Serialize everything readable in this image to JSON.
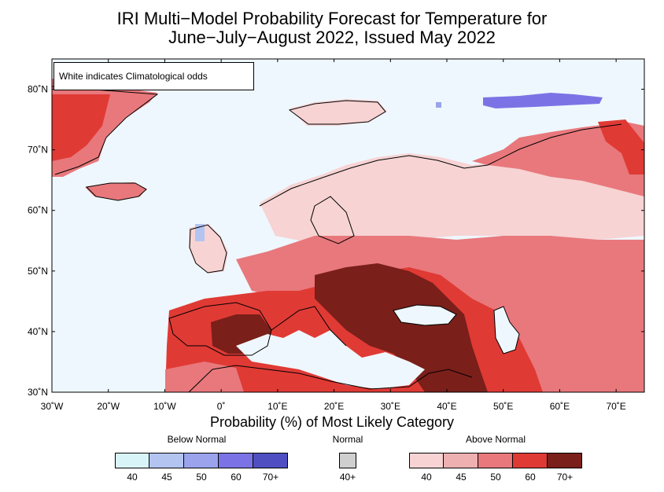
{
  "title": {
    "line1": "IRI Multi−Model Probability Forecast for Temperature for",
    "line2": "June−July−August 2022, Issued May 2022"
  },
  "note": "White indicates Climatological odds",
  "axes": {
    "x_ticks": [
      "30˚W",
      "20˚W",
      "10˚W",
      "0˚",
      "10˚E",
      "20˚E",
      "30˚E",
      "40˚E",
      "50˚E",
      "60˚E",
      "70˚E"
    ],
    "y_ticks": [
      "30˚N",
      "40˚N",
      "50˚N",
      "60˚N",
      "70˚N",
      "80˚N"
    ],
    "lon_range": [
      -30,
      75
    ],
    "lat_range": [
      30,
      85
    ]
  },
  "legend": {
    "title": "Probability (%) of Most Likely Category",
    "below": {
      "heading": "Below Normal",
      "ticks": [
        "40",
        "45",
        "50",
        "60",
        "70+"
      ],
      "colors": [
        "#d9f4f9",
        "#b3c4f1",
        "#9aa3ec",
        "#7b73e5",
        "#4f4fc2"
      ]
    },
    "normal": {
      "heading": "Normal",
      "ticks": [
        "40+"
      ],
      "colors": [
        "#cfcfcf"
      ]
    },
    "above": {
      "heading": "Above Normal",
      "ticks": [
        "40",
        "45",
        "50",
        "60",
        "70+"
      ],
      "colors": [
        "#f7d3d3",
        "#eeb0b0",
        "#e8787c",
        "#e03a35",
        "#7a1f1a"
      ]
    }
  },
  "colors": {
    "ocean": "#eef7fd",
    "frame": "#000000"
  }
}
